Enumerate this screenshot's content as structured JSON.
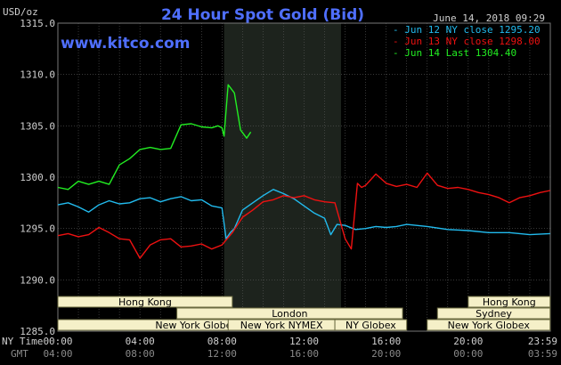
{
  "header": {
    "title": "24 Hour Spot Gold (Bid)",
    "unit": "USD/oz",
    "date": "June 14, 2018 09:29",
    "watermark": "www.kitco.com"
  },
  "legend": [
    {
      "text": "- Jun 12 NY close 1295.20",
      "color": "#22bbee"
    },
    {
      "text": "- Jun 13 NY close 1298.00",
      "color": "#ee1111"
    },
    {
      "text": "- Jun 14 Last 1304.40",
      "color": "#22ee22"
    }
  ],
  "axes": {
    "nytime_label": "NY Time",
    "gmt_label": "GMT",
    "nytime_ticks": [
      "00:00",
      "04:00",
      "08:00",
      "12:00",
      "16:00",
      "20:00",
      "23:59"
    ],
    "gmt_ticks": [
      "04:00",
      "08:00",
      "12:00",
      "16:00",
      "20:00",
      "00:00",
      "03:59"
    ],
    "y_ticks": [
      "1315.0",
      "1310.0",
      "1305.0",
      "1300.0",
      "1295.0",
      "1290.0",
      "1285.0"
    ]
  },
  "sessions": [
    {
      "label": "Hong Kong",
      "start": 0.0,
      "end": 8.5
    },
    {
      "label": "London",
      "start": 5.8,
      "end": 16.8
    },
    {
      "label": "New York Globex",
      "start": 0.0,
      "end": 13.5
    },
    {
      "label": "New York NYMEX",
      "start": 8.3,
      "end": 13.5
    },
    {
      "label": "NY Globex",
      "start": 13.5,
      "end": 17.0
    },
    {
      "label": "Hong Kong",
      "start": 20.0,
      "end": 23.99
    },
    {
      "label": "Sydney",
      "start": 18.5,
      "end": 23.99
    },
    {
      "label": "New York Globex",
      "start": 18.0,
      "end": 23.99
    }
  ],
  "chart_data": {
    "type": "line",
    "title": "24 Hour Spot Gold (Bid)",
    "ylabel": "USD/oz",
    "xlabel": "NY Time",
    "xlim": [
      0,
      24
    ],
    "ylim": [
      1285,
      1315
    ],
    "shaded": [
      8.1,
      13.8
    ],
    "grid": true,
    "legend_position": "top-right",
    "series": [
      {
        "name": "Jun 12 NY close 1295.20",
        "color": "#22bbee",
        "x": [
          0,
          0.5,
          1,
          1.5,
          2,
          2.5,
          3,
          3.5,
          4,
          4.5,
          5,
          5.5,
          6,
          6.5,
          7,
          7.5,
          8,
          8.2,
          8.4,
          8.6,
          9,
          9.5,
          10,
          10.5,
          11,
          11.5,
          12,
          12.5,
          13,
          13.3,
          13.6,
          14,
          14.5,
          15,
          15.5,
          16,
          16.5,
          17,
          18,
          19,
          20,
          21,
          22,
          23,
          23.99
        ],
        "y": [
          1297.3,
          1297.5,
          1297.1,
          1296.6,
          1297.3,
          1297.7,
          1297.4,
          1297.5,
          1297.9,
          1298.0,
          1297.6,
          1297.9,
          1298.1,
          1297.7,
          1297.8,
          1297.2,
          1297.0,
          1294.0,
          1294.6,
          1295.0,
          1296.8,
          1297.5,
          1298.2,
          1298.8,
          1298.4,
          1297.9,
          1297.2,
          1296.5,
          1296.0,
          1294.4,
          1295.4,
          1295.3,
          1294.9,
          1295.0,
          1295.2,
          1295.1,
          1295.2,
          1295.4,
          1295.2,
          1294.9,
          1294.8,
          1294.6,
          1294.6,
          1294.4,
          1294.5
        ]
      },
      {
        "name": "Jun 13 NY close 1298.00",
        "color": "#ee1111",
        "x": [
          0,
          0.5,
          1,
          1.5,
          2,
          2.5,
          3,
          3.5,
          4,
          4.5,
          5,
          5.5,
          6,
          6.5,
          7,
          7.5,
          8,
          8.5,
          9,
          9.5,
          10,
          10.5,
          11,
          11.5,
          12,
          12.5,
          13,
          13.5,
          14,
          14.3,
          14.6,
          14.8,
          15,
          15.5,
          16,
          16.5,
          17,
          17.5,
          18,
          18.5,
          19,
          19.5,
          20,
          20.5,
          21,
          21.5,
          22,
          22.5,
          23,
          23.5,
          23.99
        ],
        "y": [
          1294.3,
          1294.5,
          1294.2,
          1294.4,
          1295.1,
          1294.6,
          1294.0,
          1293.9,
          1292.1,
          1293.4,
          1293.9,
          1294.0,
          1293.2,
          1293.3,
          1293.5,
          1293.0,
          1293.4,
          1294.6,
          1296.1,
          1296.8,
          1297.6,
          1297.8,
          1298.2,
          1298.0,
          1298.2,
          1297.8,
          1297.6,
          1297.5,
          1294.0,
          1293.0,
          1299.4,
          1299.0,
          1299.2,
          1300.3,
          1299.4,
          1299.1,
          1299.3,
          1299.0,
          1300.4,
          1299.2,
          1298.9,
          1299.0,
          1298.8,
          1298.5,
          1298.3,
          1298.0,
          1297.5,
          1298.0,
          1298.2,
          1298.5,
          1298.7
        ]
      },
      {
        "name": "Jun 14 Last 1304.40",
        "color": "#22ee22",
        "x": [
          0,
          0.5,
          1,
          1.5,
          2,
          2.5,
          3,
          3.5,
          4,
          4.5,
          5,
          5.5,
          6,
          6.5,
          7,
          7.5,
          7.8,
          8.0,
          8.1,
          8.3,
          8.6,
          8.9,
          9.2,
          9.4
        ],
        "y": [
          1299.0,
          1298.8,
          1299.6,
          1299.3,
          1299.6,
          1299.3,
          1301.2,
          1301.8,
          1302.7,
          1302.9,
          1302.7,
          1302.8,
          1305.1,
          1305.2,
          1304.9,
          1304.8,
          1305.0,
          1304.8,
          1304.0,
          1309.0,
          1308.2,
          1304.6,
          1303.8,
          1304.4
        ]
      }
    ]
  }
}
